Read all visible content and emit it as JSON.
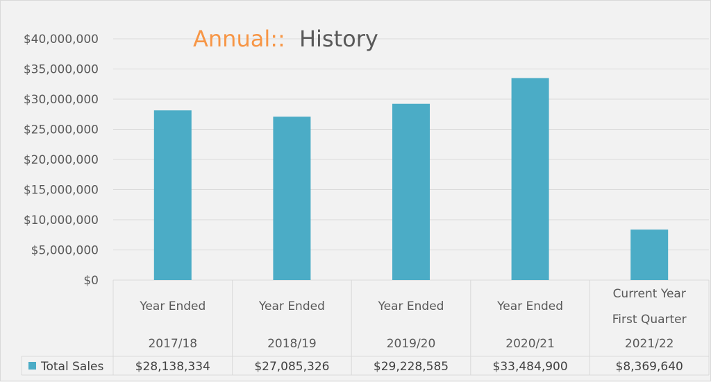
{
  "title": {
    "accent": "Annual::",
    "main": "History"
  },
  "legend_label": "Total Sales",
  "colors": {
    "bar": "#4bacc6",
    "title_accent": "#f79646",
    "grid": "#d9d9d9"
  },
  "chart_data": {
    "type": "bar",
    "title": "Annual:: History",
    "categories": [
      [
        "Year Ended",
        "2017/18"
      ],
      [
        "Year Ended",
        "2018/19"
      ],
      [
        "Year Ended",
        "2019/20"
      ],
      [
        "Year Ended",
        "2020/21"
      ],
      [
        "Current Year",
        "First Quarter",
        "2021/22"
      ]
    ],
    "series": [
      {
        "name": "Total Sales",
        "values": [
          28138334,
          27085326,
          29228585,
          33484900,
          8369640
        ]
      }
    ],
    "value_labels": [
      "$28,138,334",
      "$27,085,326",
      "$29,228,585",
      "$33,484,900",
      "$8,369,640"
    ],
    "ylim": [
      0,
      40000000
    ],
    "yticks": [
      0,
      5000000,
      10000000,
      15000000,
      20000000,
      25000000,
      30000000,
      35000000,
      40000000
    ],
    "ytick_labels": [
      "$0",
      "$5,000,000",
      "$10,000,000",
      "$15,000,000",
      "$20,000,000",
      "$25,000,000",
      "$30,000,000",
      "$35,000,000",
      "$40,000,000"
    ],
    "grid": true,
    "legend": "data-table"
  }
}
